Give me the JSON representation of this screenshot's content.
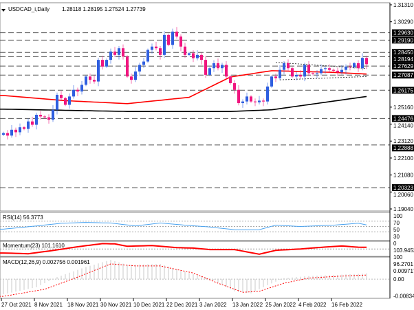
{
  "header": {
    "symbol": "USDCAD_i,Daily",
    "ohlc": "1.28118 1.28195 1.27524 1.27739"
  },
  "chart_data": {
    "type": "candlestick",
    "title": "USDCAD_i,Daily 1.28118 1.28195 1.27524 1.27739",
    "ylim": [
      1.1904,
      1.3131
    ],
    "y_ticks": [
      "1.31310",
      "1.30290",
      "1.25160",
      "1.24140",
      "1.23120",
      "1.22100",
      "1.21080",
      "1.20060",
      "1.19040"
    ],
    "y_tick_values": [
      1.3131,
      1.3029,
      1.2516,
      1.2414,
      1.2312,
      1.221,
      1.2108,
      1.2006,
      1.1904
    ],
    "levels": [
      {
        "value": 1.2963,
        "label": "1.29630"
      },
      {
        "value": 1.2919,
        "label": "1.29190"
      },
      {
        "value": 1.2845,
        "label": "1.28450"
      },
      {
        "value": 1.28194,
        "label": "1.28194"
      },
      {
        "value": 1.27629,
        "label": "1.27629"
      },
      {
        "value": 1.27087,
        "label": "1.27087"
      },
      {
        "value": 1.26175,
        "label": "1.26175"
      },
      {
        "value": 1.24476,
        "label": "1.24476"
      },
      {
        "value": 1.22888,
        "label": "1.22888"
      },
      {
        "value": 1.20323,
        "label": "1.20323"
      }
    ],
    "closes": [
      1.236,
      1.2345,
      1.238,
      1.2365,
      1.2395,
      1.2385,
      1.243,
      1.241,
      1.247,
      1.246,
      1.2455,
      1.244,
      1.25,
      1.259,
      1.257,
      1.253,
      1.258,
      1.262,
      1.261,
      1.265,
      1.27,
      1.268,
      1.267,
      1.28,
      1.276,
      1.28,
      1.285,
      1.283,
      1.287,
      1.282,
      1.27,
      1.268,
      1.273,
      1.277,
      1.279,
      1.286,
      1.288,
      1.287,
      1.283,
      1.295,
      1.289,
      1.297,
      1.294,
      1.288,
      1.283,
      1.284,
      1.281,
      1.283,
      1.28,
      1.271,
      1.275,
      1.278,
      1.275,
      1.277,
      1.27,
      1.266,
      1.262,
      1.254,
      1.255,
      1.258,
      1.255,
      1.2545,
      1.2555,
      1.255,
      1.264,
      1.27,
      1.269,
      1.274,
      1.278,
      1.275,
      1.27,
      1.271,
      1.27,
      1.277,
      1.272,
      1.2715,
      1.272,
      1.2745,
      1.275,
      1.274,
      1.2735,
      1.2725,
      1.274,
      1.276,
      1.2755,
      1.278,
      1.275,
      1.2812,
      1.2774
    ],
    "ma50": [
      [
        0,
        1.2586
      ],
      [
        15,
        1.2555
      ],
      [
        30,
        1.2537
      ],
      [
        45,
        1.2575
      ],
      [
        55,
        1.2697
      ],
      [
        65,
        1.2735
      ],
      [
        80,
        1.2725
      ],
      [
        88,
        1.2715
      ]
    ],
    "ma200": [
      [
        0,
        1.2504
      ],
      [
        30,
        1.249
      ],
      [
        55,
        1.249
      ],
      [
        65,
        1.25
      ],
      [
        88,
        1.258
      ]
    ],
    "triangle": {
      "top": [
        [
          66,
          1.2785
        ],
        [
          88,
          1.2748
        ]
      ],
      "bottom": [
        [
          67,
          1.268
        ],
        [
          88,
          1.27
        ]
      ]
    },
    "x_labels": [
      {
        "i": 0,
        "label": "27 Oct 2021"
      },
      {
        "i": 8,
        "label": "8 Nov 2021"
      },
      {
        "i": 16,
        "label": "18 Nov 2021"
      },
      {
        "i": 24,
        "label": "30 Nov 2021"
      },
      {
        "i": 32,
        "label": "10 Dec 2021"
      },
      {
        "i": 40,
        "label": "22 Dec 2021"
      },
      {
        "i": 48,
        "label": "3 Jan 2022"
      },
      {
        "i": 56,
        "label": "13 Jan 2022"
      },
      {
        "i": 64,
        "label": "25 Jan 2022"
      },
      {
        "i": 72,
        "label": "4 Feb 2022"
      },
      {
        "i": 80,
        "label": "16 Feb 2022"
      }
    ],
    "rsi": {
      "label": "RSI(14) 56.3773",
      "ticks": [
        "100",
        "70",
        "50",
        "30",
        "0"
      ],
      "points": [
        [
          0,
          40
        ],
        [
          8,
          52
        ],
        [
          14,
          62
        ],
        [
          20,
          65
        ],
        [
          26,
          63
        ],
        [
          32,
          52
        ],
        [
          38,
          63
        ],
        [
          44,
          55
        ],
        [
          50,
          48
        ],
        [
          56,
          38
        ],
        [
          62,
          38
        ],
        [
          66,
          55
        ],
        [
          72,
          50
        ],
        [
          80,
          55
        ],
        [
          86,
          62
        ],
        [
          88,
          56
        ]
      ]
    },
    "momentum": {
      "label": "Momentum(23) 101.1610",
      "ticks": [
        "103.9452",
        "100",
        "96.2701"
      ],
      "range": [
        95.5,
        104.7
      ],
      "points": [
        [
          0,
          97.3
        ],
        [
          6,
          96.8
        ],
        [
          12,
          99
        ],
        [
          18,
          101.5
        ],
        [
          24,
          103.6
        ],
        [
          27,
          103.4
        ],
        [
          30,
          101.8
        ],
        [
          36,
          102.3
        ],
        [
          42,
          100.9
        ],
        [
          46,
          100.6
        ],
        [
          50,
          99.6
        ],
        [
          56,
          99.6
        ],
        [
          62,
          96.5
        ],
        [
          66,
          99.1
        ],
        [
          72,
          100
        ],
        [
          78,
          101.3
        ],
        [
          82,
          102
        ],
        [
          86,
          101.2
        ],
        [
          88,
          101.16
        ]
      ]
    },
    "macd": {
      "label": "MACD(12,26,9) 0.002756 0.001961",
      "ticks": [
        "0.009717",
        "0.00",
        "-0.008347"
      ],
      "range": [
        -0.0088,
        0.0102
      ],
      "hist": [
        [
          0,
          -0.0075
        ],
        [
          8,
          -0.004
        ],
        [
          13,
          0.001
        ],
        [
          20,
          0.006
        ],
        [
          26,
          0.0095
        ],
        [
          30,
          0.007
        ],
        [
          38,
          0.0075
        ],
        [
          44,
          0.0035
        ],
        [
          50,
          0.0005
        ],
        [
          56,
          -0.006
        ],
        [
          60,
          -0.007
        ],
        [
          64,
          -0.003
        ],
        [
          68,
          0.0005
        ],
        [
          74,
          0.0015
        ],
        [
          80,
          0.002
        ],
        [
          88,
          0.0028
        ]
      ],
      "signal": [
        [
          0,
          -0.0085
        ],
        [
          10,
          -0.005
        ],
        [
          18,
          0.001
        ],
        [
          26,
          0.0075
        ],
        [
          32,
          0.0065
        ],
        [
          38,
          0.0065
        ],
        [
          46,
          0.003
        ],
        [
          52,
          -0.002
        ],
        [
          58,
          -0.0065
        ],
        [
          62,
          -0.006
        ],
        [
          68,
          -0.002
        ],
        [
          74,
          0.0005
        ],
        [
          82,
          0.0015
        ],
        [
          88,
          0.002
        ]
      ]
    }
  }
}
